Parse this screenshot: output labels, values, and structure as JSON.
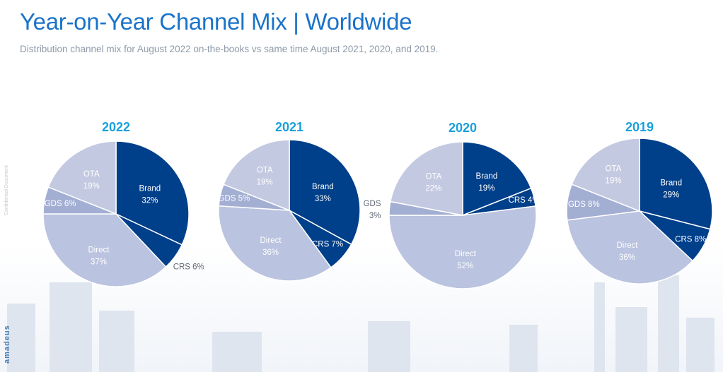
{
  "header": {
    "title": "Year-on-Year Channel Mix | Worldwide",
    "subtitle": "Distribution channel mix for August 2022 on-the-books vs same time August 2021, 2020, and 2019."
  },
  "side_note": "Confidential Document",
  "logo_text": "amadeus",
  "colors": {
    "title": "#1a73c9",
    "year": "#1aa0dc",
    "brand": "#003f8a",
    "crs": "#003f8a",
    "direct": "#bac3df",
    "gds": "#a3aed3",
    "ota": "#c3c9e1"
  },
  "chart_data": [
    {
      "type": "pie",
      "title": "2022",
      "slices": [
        {
          "name": "Brand",
          "value": 32
        },
        {
          "name": "CRS",
          "value": 6
        },
        {
          "name": "Direct",
          "value": 37
        },
        {
          "name": "GDS",
          "value": 6
        },
        {
          "name": "OTA",
          "value": 19
        }
      ]
    },
    {
      "type": "pie",
      "title": "2021",
      "slices": [
        {
          "name": "Brand",
          "value": 33
        },
        {
          "name": "CRS",
          "value": 7
        },
        {
          "name": "Direct",
          "value": 36
        },
        {
          "name": "GDS",
          "value": 5
        },
        {
          "name": "OTA",
          "value": 19
        }
      ]
    },
    {
      "type": "pie",
      "title": "2020",
      "slices": [
        {
          "name": "Brand",
          "value": 19
        },
        {
          "name": "CRS",
          "value": 4
        },
        {
          "name": "Direct",
          "value": 52
        },
        {
          "name": "GDS",
          "value": 3
        },
        {
          "name": "OTA",
          "value": 22
        }
      ]
    },
    {
      "type": "pie",
      "title": "2019",
      "slices": [
        {
          "name": "Brand",
          "value": 29
        },
        {
          "name": "CRS",
          "value": 8
        },
        {
          "name": "Direct",
          "value": 36
        },
        {
          "name": "GDS",
          "value": 8
        },
        {
          "name": "OTA",
          "value": 19
        }
      ]
    }
  ]
}
